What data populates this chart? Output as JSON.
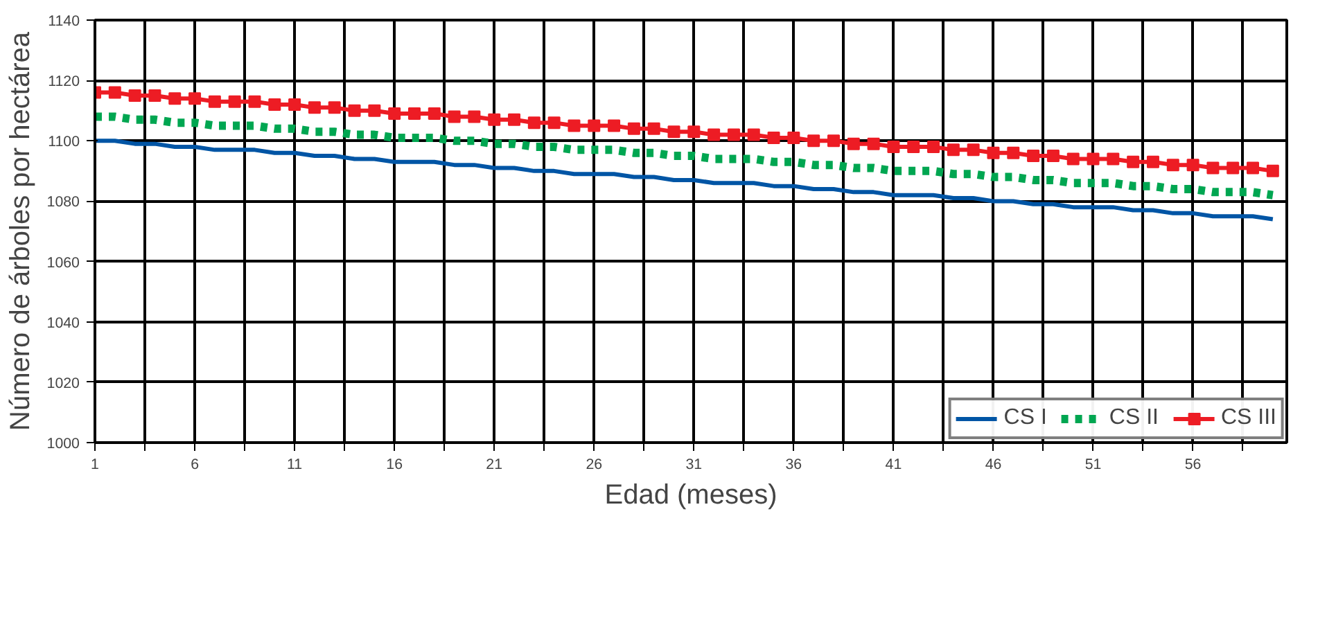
{
  "chart_data": {
    "type": "line",
    "xlabel": "Edad (meses)",
    "ylabel": "Número de árboles por hectárea",
    "x": [
      1,
      2,
      3,
      4,
      5,
      6,
      7,
      8,
      9,
      10,
      11,
      12,
      13,
      14,
      15,
      16,
      17,
      18,
      19,
      20,
      21,
      22,
      23,
      24,
      25,
      26,
      27,
      28,
      29,
      30,
      31,
      32,
      33,
      34,
      35,
      36,
      37,
      38,
      39,
      40,
      41,
      42,
      43,
      44,
      45,
      46,
      47,
      48,
      49,
      50,
      51,
      52,
      53,
      54,
      55,
      56,
      57,
      58,
      59,
      60
    ],
    "series": [
      {
        "name": "CS I",
        "color": "#0055a5",
        "line_style": "solid",
        "marker": "none",
        "values": [
          1100,
          1100,
          1099,
          1099,
          1098,
          1098,
          1097,
          1097,
          1097,
          1096,
          1096,
          1095,
          1095,
          1094,
          1094,
          1093,
          1093,
          1093,
          1092,
          1092,
          1091,
          1091,
          1090,
          1090,
          1089,
          1089,
          1089,
          1088,
          1088,
          1087,
          1087,
          1086,
          1086,
          1086,
          1085,
          1085,
          1084,
          1084,
          1083,
          1083,
          1082,
          1082,
          1082,
          1081,
          1081,
          1080,
          1080,
          1079,
          1079,
          1078,
          1078,
          1078,
          1077,
          1077,
          1076,
          1076,
          1075,
          1075,
          1075,
          1074
        ]
      },
      {
        "name": "CS II",
        "color": "#00a651",
        "line_style": "dotted",
        "marker": "none",
        "values": [
          1108,
          1108,
          1107,
          1107,
          1106,
          1106,
          1105,
          1105,
          1105,
          1104,
          1104,
          1103,
          1103,
          1102,
          1102,
          1101,
          1101,
          1101,
          1100,
          1100,
          1099,
          1099,
          1098,
          1098,
          1097,
          1097,
          1097,
          1096,
          1096,
          1095,
          1095,
          1094,
          1094,
          1094,
          1093,
          1093,
          1092,
          1092,
          1091,
          1091,
          1090,
          1090,
          1090,
          1089,
          1089,
          1088,
          1088,
          1087,
          1087,
          1086,
          1086,
          1086,
          1085,
          1085,
          1084,
          1084,
          1083,
          1083,
          1083,
          1082
        ]
      },
      {
        "name": "CS III",
        "color": "#ed1c24",
        "line_style": "solid",
        "marker": "square",
        "values": [
          1116,
          1116,
          1115,
          1115,
          1114,
          1114,
          1113,
          1113,
          1113,
          1112,
          1112,
          1111,
          1111,
          1110,
          1110,
          1109,
          1109,
          1109,
          1108,
          1108,
          1107,
          1107,
          1106,
          1106,
          1105,
          1105,
          1105,
          1104,
          1104,
          1103,
          1103,
          1102,
          1102,
          1102,
          1101,
          1101,
          1100,
          1100,
          1099,
          1099,
          1098,
          1098,
          1098,
          1097,
          1097,
          1096,
          1096,
          1095,
          1095,
          1094,
          1094,
          1094,
          1093,
          1093,
          1092,
          1092,
          1091,
          1091,
          1091,
          1090
        ]
      }
    ],
    "xlim": [
      1,
      60.7
    ],
    "ylim": [
      1000,
      1140
    ],
    "xticks": [
      1,
      {
        "value": 3.5,
        "label": null
      },
      6,
      {
        "value": 8.5,
        "label": null
      },
      11,
      {
        "value": 13.5,
        "label": null
      },
      16,
      {
        "value": 18.5,
        "label": null
      },
      21,
      {
        "value": 23.5,
        "label": null
      },
      26,
      {
        "value": 28.5,
        "label": null
      },
      31,
      {
        "value": 33.5,
        "label": null
      },
      36,
      {
        "value": 38.5,
        "label": null
      },
      41,
      {
        "value": 43.5,
        "label": null
      },
      46,
      {
        "value": 48.5,
        "label": null
      },
      51,
      {
        "value": 53.5,
        "label": null
      },
      56,
      {
        "value": 58.5,
        "label": null
      }
    ],
    "yticks": [
      1000,
      1020,
      1040,
      1060,
      1080,
      1100,
      1120,
      1140
    ],
    "grid": true,
    "legend": "bottom right"
  }
}
